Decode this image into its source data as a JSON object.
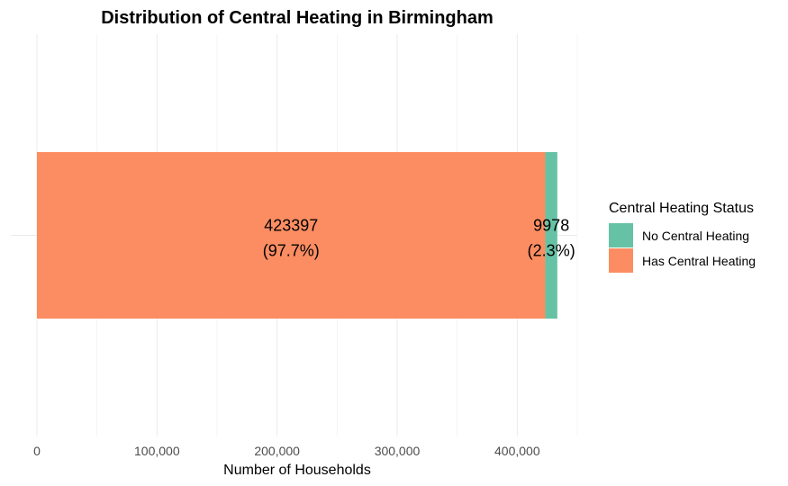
{
  "chart_data": {
    "type": "bar",
    "orientation": "horizontal",
    "stacked": true,
    "title": "Distribution of Central Heating in Birmingham",
    "xlabel": "Number of Households",
    "ylabel": "",
    "xlim": [
      0,
      450000
    ],
    "x_ticks": [
      0,
      100000,
      200000,
      300000,
      400000
    ],
    "x_tick_labels": [
      "0",
      "100,000",
      "200,000",
      "300,000",
      "400,000"
    ],
    "grid": true,
    "legend_position": "right",
    "legend_title": "Central Heating Status",
    "legend": [
      {
        "label": "No Central Heating",
        "color": "#66c2a5"
      },
      {
        "label": "Has Central Heating",
        "color": "#fc8d62"
      }
    ],
    "series": [
      {
        "name": "Has Central Heating",
        "value": 423397,
        "percent_label": "(97.7%)",
        "value_label": "423397",
        "color": "#fc8d62"
      },
      {
        "name": "No Central Heating",
        "value": 9978,
        "percent_label": "(2.3%)",
        "value_label": "9978",
        "color": "#66c2a5"
      }
    ]
  }
}
